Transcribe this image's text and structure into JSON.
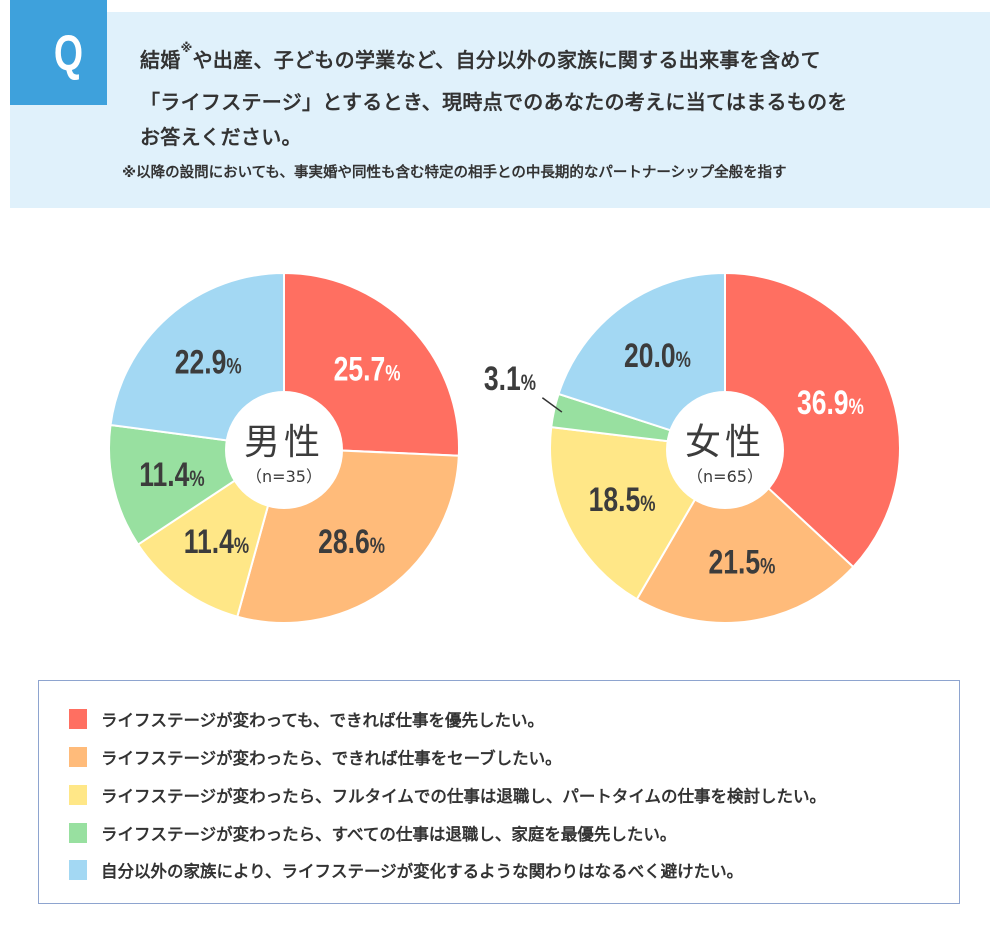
{
  "question": {
    "badge": "Q",
    "line1_a": "結婚",
    "line1_mark": "※",
    "line1_b": "や出産、子どもの学業など、自分以外の家族に関する出来事を含めて",
    "line2": "「ライフステージ」とするとき、現時点でのあなたの考えに当てはまるものを",
    "line3": "お答えください。",
    "note": "※以降の設問においても、事実婚や同性も含む特定の相手との中長期的なパートナーシップ全般を指す"
  },
  "colors": {
    "badge": "#3ea1dc",
    "panel": "#e0f1fb",
    "categories": [
      "#ff6f61",
      "#ffbb7a",
      "#ffe787",
      "#98e0a0",
      "#a3d8f3"
    ]
  },
  "legend": [
    "ライフステージが変わっても、できれば仕事を優先したい。",
    "ライフステージが変わったら、できれば仕事をセーブしたい。",
    "ライフステージが変わったら、フルタイムでの仕事は退職し、パートタイムの仕事を検討したい。",
    "ライフステージが変わったら、すべての仕事は退職し、家庭を最優先したい。",
    "自分以外の家族により、ライフステージが変化するような関わりはなるべく避けたい。"
  ],
  "chart_data": [
    {
      "type": "pie",
      "title": "男性",
      "subtitle": "（n=35）",
      "categories": [
        "ライフステージが変わっても、できれば仕事を優先したい。",
        "ライフステージが変わったら、できれば仕事をセーブしたい。",
        "ライフステージが変わったら、フルタイムでの仕事は退職し、パートタイムの仕事を検討したい。",
        "ライフステージが変わったら、すべての仕事は退職し、家庭を最優先したい。",
        "自分以外の家族により、ライフステージが変化するような関わりはなるべく避けたい。"
      ],
      "values": [
        25.7,
        28.6,
        11.4,
        11.4,
        22.9
      ],
      "labels": [
        "25.7",
        "28.6",
        "11.4",
        "11.4",
        "22.9"
      ],
      "unit": "%"
    },
    {
      "type": "pie",
      "title": "女性",
      "subtitle": "（n=65）",
      "categories": [
        "ライフステージが変わっても、できれば仕事を優先したい。",
        "ライフステージが変わったら、できれば仕事をセーブしたい。",
        "ライフステージが変わったら、フルタイムでの仕事は退職し、パートタイムの仕事を検討したい。",
        "ライフステージが変わったら、すべての仕事は退職し、家庭を最優先したい。",
        "自分以外の家族により、ライフステージが変化するような関わりはなるべく避けたい。"
      ],
      "values": [
        36.9,
        21.5,
        18.5,
        3.1,
        20.0
      ],
      "labels": [
        "36.9",
        "21.5",
        "18.5",
        "3.1",
        "20.0"
      ],
      "unit": "%"
    }
  ]
}
